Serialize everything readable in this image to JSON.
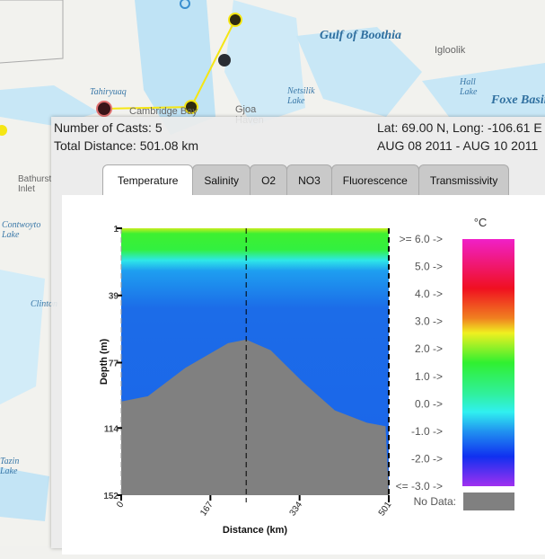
{
  "map": {
    "labels": [
      "Gulf of Boothia",
      "Tahiryuaq",
      "Cambridge Bay",
      "Gjoa Haven",
      "Netsilik Lake",
      "Igloolik",
      "Hall Lake",
      "Foxe Basin",
      "Bathurst Inlet",
      "Contwoyto Lake",
      "Clinton",
      "Tazin Lake"
    ],
    "route_color": "#f5e614"
  },
  "summary": {
    "casts": "Number of Casts: 5",
    "distance": "Total Distance: 501.08 km",
    "latlong": "Lat: 69.00 N, Long: -106.61 E",
    "dates": "AUG 08 2011 - AUG 10 2011"
  },
  "tabs": [
    {
      "label": "Temperature",
      "active": true
    },
    {
      "label": "Salinity"
    },
    {
      "label": "O2"
    },
    {
      "label": "NO3"
    },
    {
      "label": "Fluorescence"
    },
    {
      "label": "Transmissivity"
    }
  ],
  "chart_data": {
    "type": "heatmap",
    "xlabel": "Distance (km)",
    "ylabel": "Depth (m)",
    "xlim": [
      0,
      501
    ],
    "ylim": [
      1,
      152
    ],
    "xticks": [
      "0",
      "167",
      "334",
      "501"
    ],
    "yticks": [
      "1",
      "39",
      "77",
      "114",
      "152"
    ],
    "cast_distances_km": [
      234,
      501
    ],
    "seafloor_profile": [
      [
        0,
        99
      ],
      [
        50,
        96
      ],
      [
        120,
        80
      ],
      [
        200,
        66
      ],
      [
        234,
        64
      ],
      [
        280,
        70
      ],
      [
        340,
        88
      ],
      [
        400,
        104
      ],
      [
        460,
        111
      ],
      [
        495,
        113
      ],
      [
        501,
        152
      ]
    ],
    "colorbar": {
      "unit": "°C",
      "labels": [
        ">=  6.0 ->",
        "5.0 ->",
        "4.0 ->",
        "3.0 ->",
        "2.0 ->",
        "1.0 ->",
        "0.0 ->",
        "-1.0 ->",
        "-2.0 ->",
        "<= -3.0 ->"
      ],
      "range": [
        -3,
        6
      ],
      "nodata_label": "No Data:",
      "nodata_color": "#808080"
    }
  }
}
